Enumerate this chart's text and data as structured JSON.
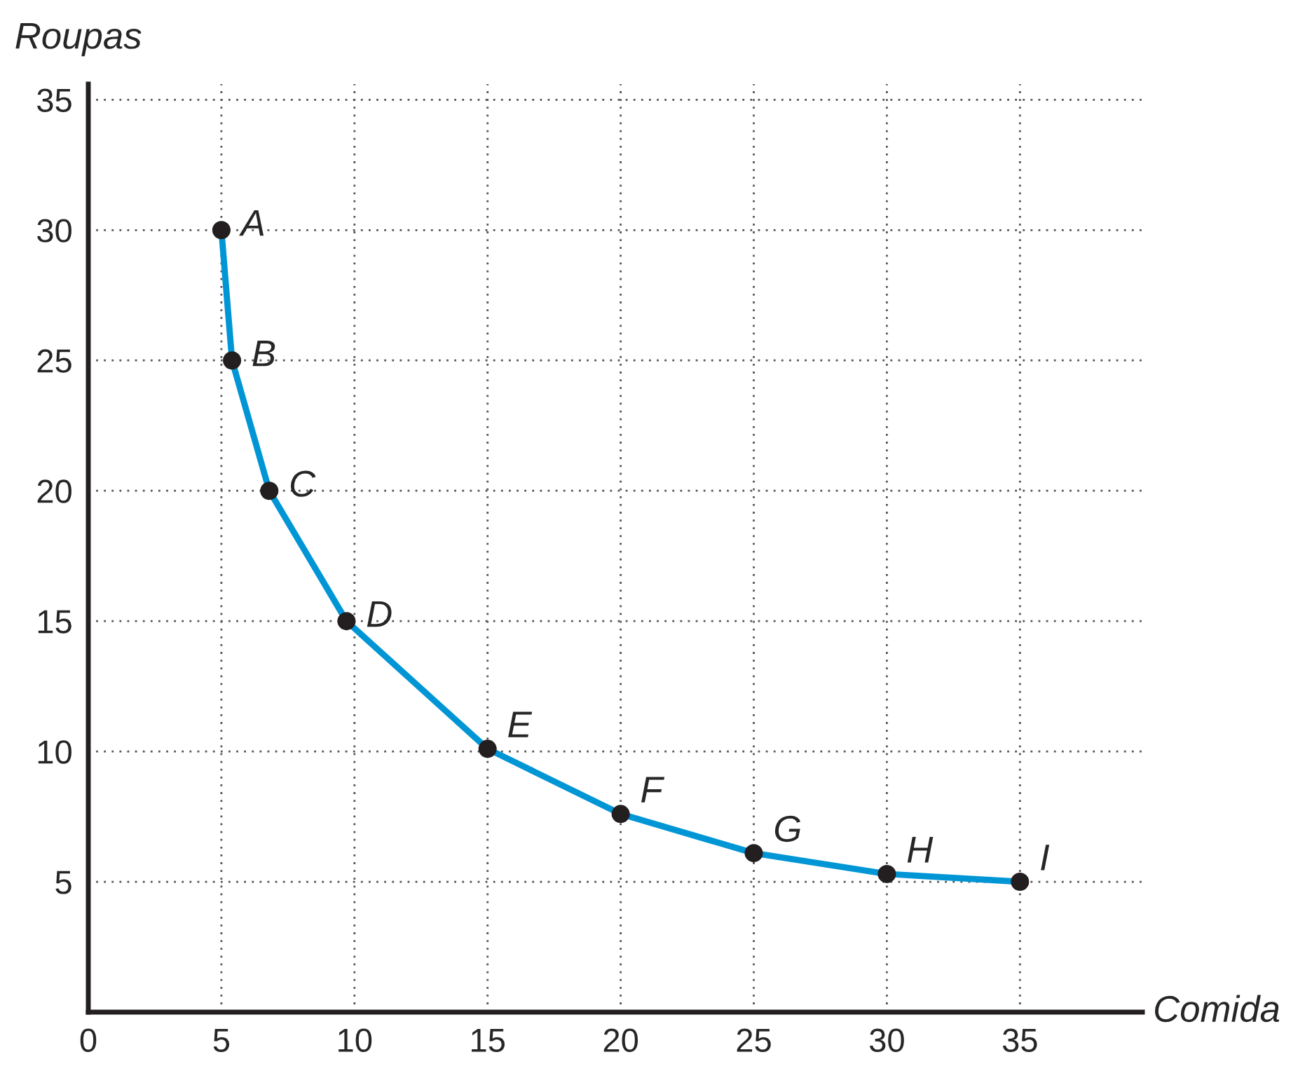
{
  "chart_data": {
    "type": "line",
    "xlabel": "Comida",
    "ylabel": "Roupas",
    "x": [
      5,
      5.4,
      6.8,
      9.7,
      15,
      20,
      25,
      30,
      35
    ],
    "series": [
      {
        "color": "#0096d6",
        "values": [
          30,
          25,
          20,
          15,
          10.1,
          7.6,
          6.1,
          5.3,
          5
        ]
      },
      {
        "type": "scatter",
        "marker": "circle",
        "color": "#231f20",
        "values": [
          30,
          25,
          20,
          15,
          10.1,
          7.6,
          6.1,
          5.3,
          5
        ]
      }
    ],
    "annotations": [
      {
        "text": "A",
        "x": 5,
        "y": 30
      },
      {
        "text": "B",
        "x": 5.4,
        "y": 25
      },
      {
        "text": "C",
        "x": 6.8,
        "y": 20
      },
      {
        "text": "D",
        "x": 9.7,
        "y": 15
      },
      {
        "text": "E",
        "x": 15,
        "y": 10.1
      },
      {
        "text": "F",
        "x": 20,
        "y": 7.6
      },
      {
        "text": "G",
        "x": 25,
        "y": 6.1
      },
      {
        "text": "H",
        "x": 30,
        "y": 5.3
      },
      {
        "text": "I",
        "x": 35,
        "y": 5
      }
    ],
    "xlim": [
      0,
      39.6
    ],
    "ylim": [
      0,
      35.6
    ],
    "xticks": [
      {
        "value": 0,
        "label": "0"
      },
      5,
      10,
      15,
      20,
      25,
      30,
      35
    ],
    "yticks": [
      5,
      10,
      15,
      20,
      25,
      30,
      35
    ],
    "grid": true,
    "line_style": "solid"
  }
}
